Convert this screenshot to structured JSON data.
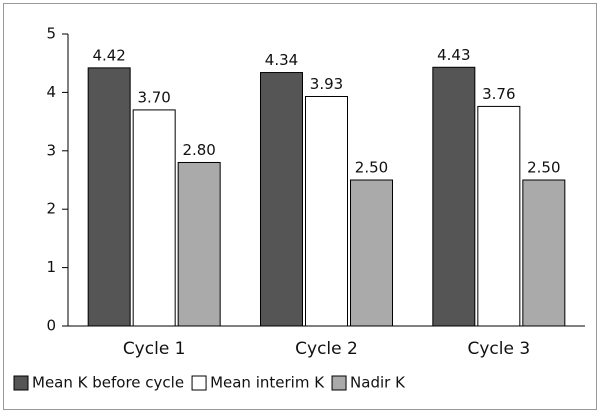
{
  "chart_data": {
    "type": "bar",
    "categories": [
      "Cycle 1",
      "Cycle 2",
      "Cycle 3"
    ],
    "series": [
      {
        "name": "Mean K before cycle",
        "color": "#555555",
        "values": [
          4.42,
          4.34,
          4.43
        ],
        "value_labels": [
          "4.42",
          "4.34",
          "4.43"
        ]
      },
      {
        "name": "Mean interim K",
        "color": "#ffffff",
        "values": [
          3.7,
          3.93,
          3.76
        ],
        "value_labels": [
          "3.70",
          "3.93",
          "3.76"
        ]
      },
      {
        "name": "Nadir K",
        "color": "#aaaaaa",
        "values": [
          2.8,
          2.5,
          2.5
        ],
        "value_labels": [
          "2.80",
          "2.50",
          "2.50"
        ]
      }
    ],
    "ylim": [
      0,
      5
    ],
    "yticks": [
      0,
      1,
      2,
      3,
      4,
      5
    ],
    "legend": "bottom"
  }
}
